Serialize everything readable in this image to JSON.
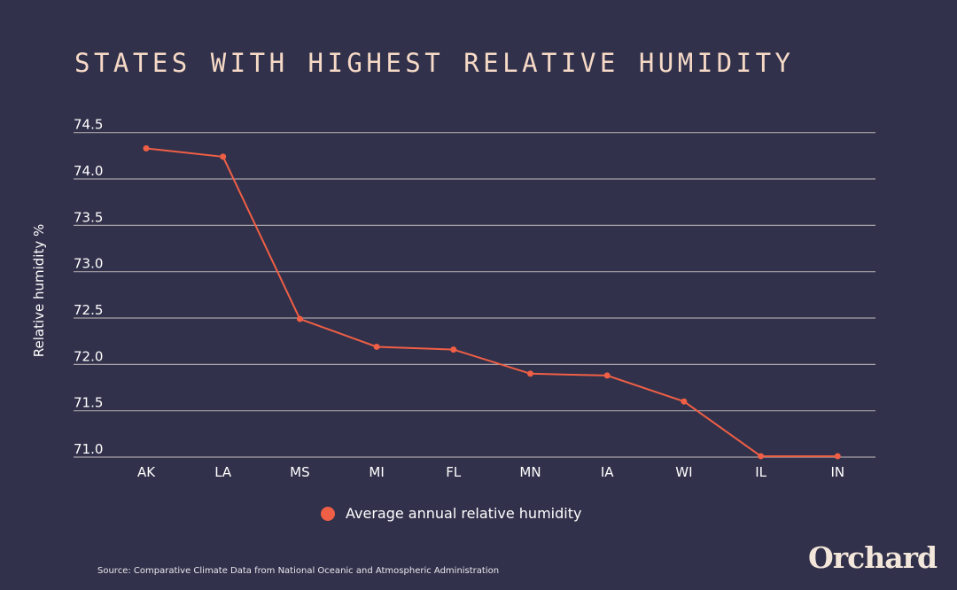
{
  "chart_data": {
    "type": "line",
    "title": "STATES WITH HIGHEST RELATIVE HUMIDITY",
    "xlabel": "",
    "ylabel": "Relative humidity %",
    "categories": [
      "AK",
      "LA",
      "MS",
      "MI",
      "FL",
      "MN",
      "IA",
      "WI",
      "IL",
      "IN"
    ],
    "series": [
      {
        "name": "Average annual relative humidity",
        "color": "#ef5f45",
        "values": [
          74.33,
          74.24,
          72.49,
          72.19,
          72.16,
          71.9,
          71.88,
          71.6,
          71.01,
          71.01
        ]
      }
    ],
    "ylim": [
      71.0,
      74.5
    ],
    "yticks": [
      "71.0",
      "71.5",
      "72.0",
      "72.5",
      "73.0",
      "73.5",
      "74.0",
      "74.5"
    ],
    "grid": true,
    "legend": "bottom"
  },
  "source": "Source: Comparative Climate Data from National Oceanic and Atmospheric Administration",
  "logo": "Orchard",
  "colors": {
    "background": "#31314b",
    "title": "#f6d9c6",
    "grid": "#a9a2a8"
  }
}
